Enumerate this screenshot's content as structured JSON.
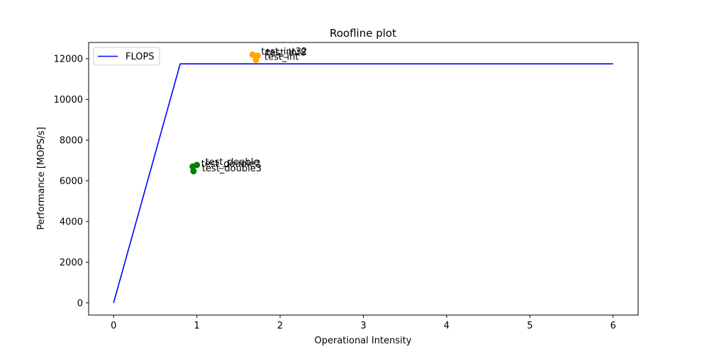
{
  "chart_data": {
    "type": "line",
    "title": "Roofline plot",
    "xlabel": "Operational Intensity",
    "ylabel": "Performance [MOPS/s]",
    "xlim": [
      -0.3,
      6.3
    ],
    "ylim": [
      -600,
      12800
    ],
    "xticks": [
      0,
      1,
      2,
      3,
      4,
      5,
      6
    ],
    "yticks": [
      0,
      2000,
      4000,
      6000,
      8000,
      10000,
      12000
    ],
    "grid": false,
    "legend": {
      "placement": "top-left",
      "entries": [
        "FLOPS"
      ]
    },
    "series": [
      {
        "name": "FLOPS",
        "color": "#0000ff",
        "x": [
          0,
          0.8,
          6
        ],
        "y": [
          0,
          11750,
          11750
        ]
      }
    ],
    "points": [
      {
        "label": "test_int32",
        "x": 1.67,
        "y": 12200,
        "color": "#ffa500"
      },
      {
        "label": "test_int8",
        "x": 1.73,
        "y": 12150,
        "color": "#ffa500"
      },
      {
        "label": "test_int",
        "x": 1.71,
        "y": 11950,
        "color": "#ffa500"
      },
      {
        "label": "test_double",
        "x": 1.0,
        "y": 6780,
        "color": "#008000"
      },
      {
        "label": "test_double2",
        "x": 0.95,
        "y": 6700,
        "color": "#008000"
      },
      {
        "label": "test_double3",
        "x": 0.96,
        "y": 6470,
        "color": "#008000"
      }
    ]
  }
}
